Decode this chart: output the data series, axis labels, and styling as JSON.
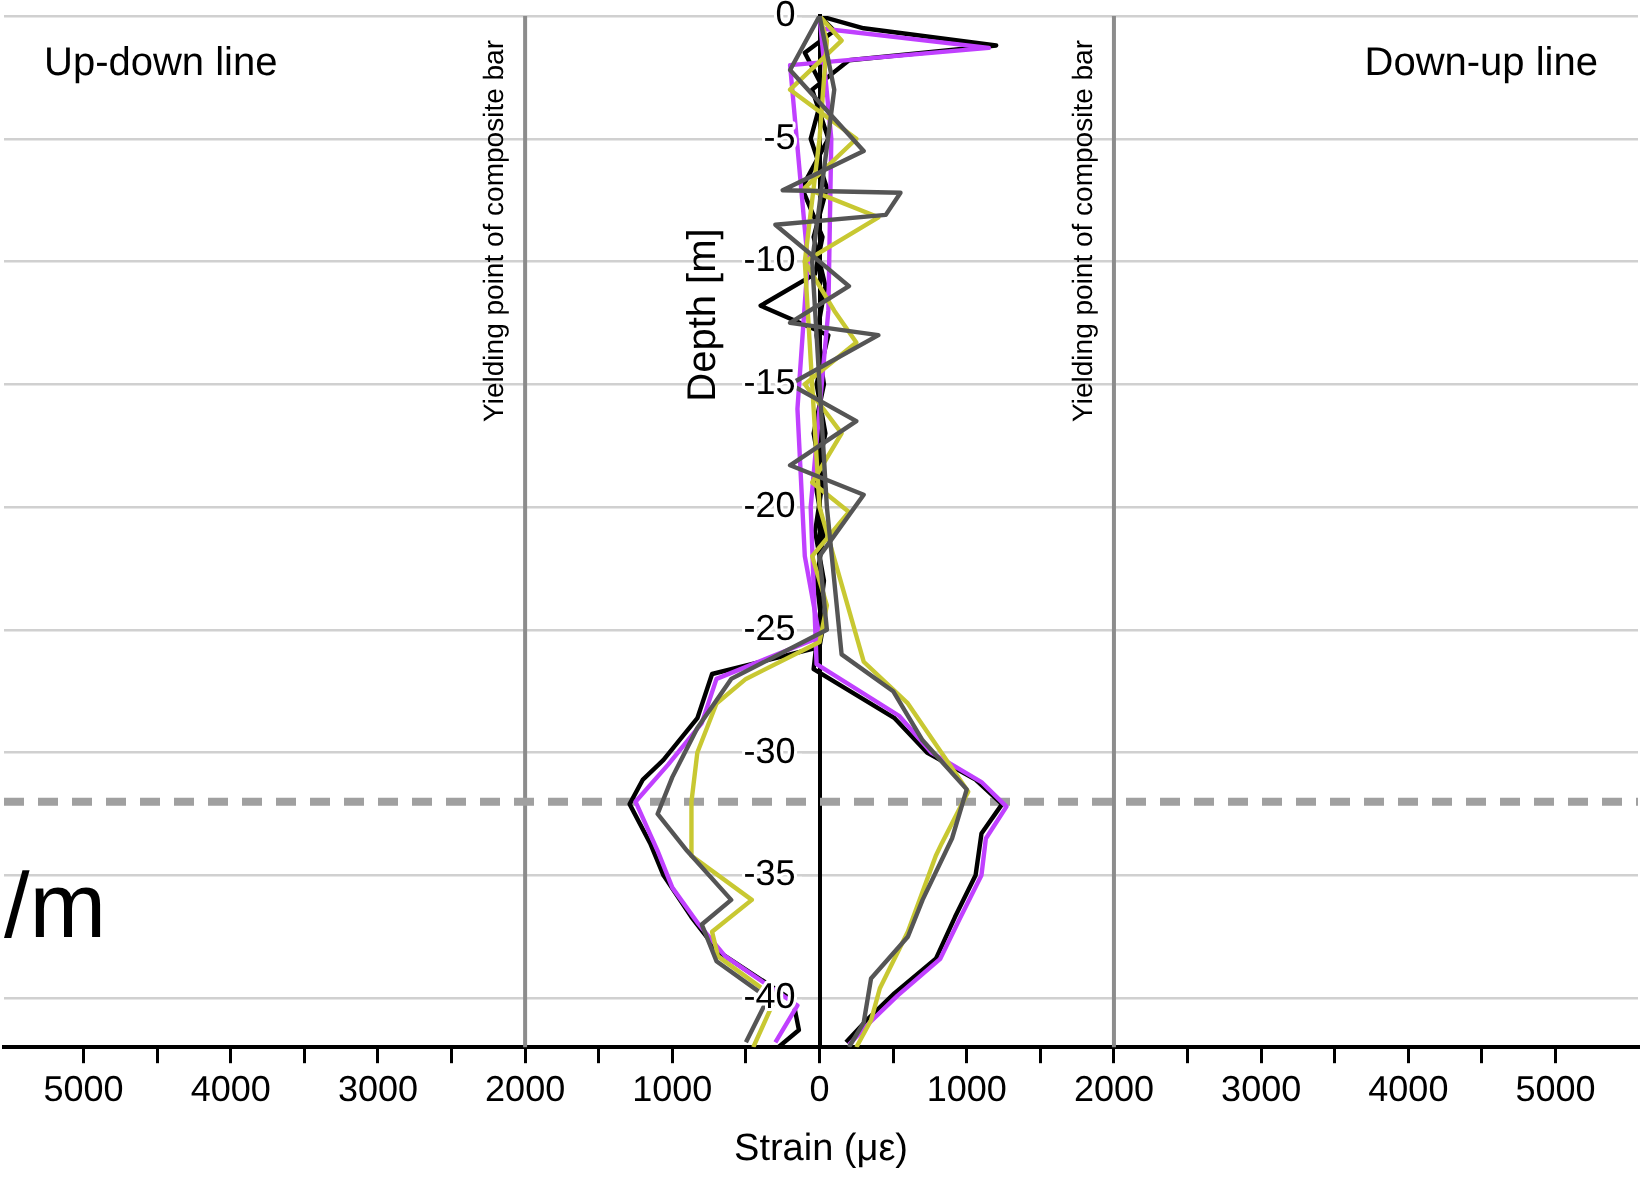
{
  "chart_data": {
    "type": "line",
    "xlabel": "Strain (με)",
    "ylabel": "Depth [m]",
    "xlim": [
      -5540,
      5560
    ],
    "ylim": [
      -42,
      0
    ],
    "xticks": [
      {
        "value": -5000,
        "label": "5000"
      },
      {
        "value": -4500,
        "label": null
      },
      {
        "value": -4000,
        "label": "4000"
      },
      {
        "value": -3500,
        "label": null
      },
      {
        "value": -3000,
        "label": "3000"
      },
      {
        "value": -2500,
        "label": null
      },
      {
        "value": -2000,
        "label": "2000"
      },
      {
        "value": -1500,
        "label": null
      },
      {
        "value": -1000,
        "label": "1000"
      },
      {
        "value": -500,
        "label": null
      },
      0,
      {
        "value": 500,
        "label": null
      },
      1000,
      {
        "value": 1500,
        "label": null
      },
      2000,
      {
        "value": 2500,
        "label": null
      },
      3000,
      {
        "value": 3500,
        "label": null
      },
      4000,
      {
        "value": 4500,
        "label": null
      },
      5000
    ],
    "yticks": [
      0,
      -5,
      -10,
      -15,
      -20,
      -25,
      -30,
      -35,
      -40
    ],
    "grid": "y",
    "legend": false,
    "marker": "none",
    "line_style": "solid",
    "ref_lines": [
      {
        "axis": "x",
        "value": -2000,
        "label": "Yielding point of composite bar",
        "color": "#8c8c8c",
        "line_style": "solid"
      },
      {
        "axis": "x",
        "value": 2000,
        "label": "Yielding point of composite bar",
        "color": "#8c8c8c",
        "line_style": "solid"
      },
      {
        "axis": "y",
        "value": -32,
        "label": null,
        "color": "#a0a0a0",
        "line_style": "dashed"
      }
    ],
    "annotations": [
      "Up-down line",
      "Down-up line",
      "/m"
    ],
    "series": [
      {
        "color": "#555555",
        "x": [
          0,
          -200,
          300,
          -250,
          550,
          450,
          -300,
          200,
          -200,
          400,
          -200,
          250,
          -200,
          300,
          0,
          50,
          -600,
          -830,
          -1000,
          -1100,
          -900,
          -600,
          -800,
          -700,
          -350,
          -500
        ],
        "values": [
          0,
          -2.2,
          -5.5,
          -7.1,
          -7.2,
          -8.1,
          -8.5,
          -11,
          -12.5,
          -13,
          -15,
          -16.5,
          -18.3,
          -19.5,
          -22,
          -25,
          -27,
          -29,
          -31,
          -32.5,
          -34,
          -36,
          -37,
          -38.5,
          -40,
          -41.8
        ]
      },
      {
        "color": "#555555",
        "x": [
          0,
          100,
          -50,
          50,
          150,
          500,
          700,
          1000,
          900,
          700,
          600,
          350,
          300,
          200
        ],
        "values": [
          0,
          -3,
          -10,
          -20,
          -26,
          -27.5,
          -29.5,
          -31.5,
          -33.5,
          -36,
          -37.5,
          -39.2,
          -41,
          -42
        ]
      },
      {
        "color": "#c8c832",
        "x": [
          0,
          150,
          -200,
          250,
          -100,
          400,
          -100,
          100,
          250,
          -100,
          150,
          -50,
          200,
          -50,
          50,
          0,
          -500,
          -700,
          -830,
          -870,
          -870,
          -460,
          -730,
          -690,
          -300,
          -450
        ],
        "values": [
          0,
          -1,
          -3,
          -5,
          -7,
          -8.2,
          -10,
          -12,
          -13.3,
          -15,
          -17,
          -19,
          -20.2,
          -22,
          -24,
          -25.5,
          -27,
          -28,
          -30,
          -32,
          -34.2,
          -36,
          -37.3,
          -38.3,
          -40,
          -42
        ]
      },
      {
        "color": "#c8c832",
        "x": [
          0,
          50,
          0,
          -100,
          0,
          300,
          600,
          1010,
          830,
          790,
          600,
          410,
          350,
          250
        ],
        "values": [
          0,
          -1,
          -5,
          -10,
          -20,
          -26.3,
          -28,
          -31.6,
          -33.7,
          -34.2,
          -37.3,
          -39.6,
          -40.9,
          -42
        ]
      },
      {
        "color": "#c040ff",
        "x": [
          0,
          1150,
          -200,
          -80,
          -150,
          -100,
          0,
          -700,
          -800,
          -1030,
          -1250,
          -1100,
          -1000,
          -820,
          -640,
          -150,
          -300
        ],
        "values": [
          -0.5,
          -1.3,
          -2,
          -10,
          -16,
          -22,
          -25.3,
          -27,
          -28.8,
          -30.5,
          -32,
          -34,
          -35.5,
          -37,
          -38.3,
          -40.3,
          -41.8
        ]
      },
      {
        "color": "#c040ff",
        "x": [
          0,
          80,
          60,
          -60,
          -20,
          540,
          760,
          1100,
          1270,
          1130,
          1100,
          950,
          820,
          530,
          340,
          200
        ],
        "values": [
          0,
          -5,
          -12,
          -20,
          -26.4,
          -28.5,
          -30,
          -31.2,
          -32.2,
          -33.5,
          -35,
          -36.8,
          -38.4,
          -39.9,
          -41,
          -41.9
        ]
      },
      {
        "color": "#000000",
        "x": [
          0,
          300,
          1200,
          200,
          -50,
          60,
          -120,
          20,
          -30,
          -400,
          60,
          -20,
          40,
          -30,
          30,
          -20,
          20,
          0,
          -730,
          -830,
          -1060,
          -1200,
          -1290,
          -1150,
          -1060,
          -870,
          -690,
          -460,
          -180,
          -140,
          -280
        ],
        "values": [
          0,
          -0.5,
          -1.2,
          -1.8,
          -3,
          -5,
          -7,
          -9,
          -10.5,
          -11.8,
          -13,
          -15,
          -17,
          -19,
          -21,
          -23,
          -25,
          -25.7,
          -26.8,
          -28.6,
          -30.3,
          -31.1,
          -32.1,
          -33.7,
          -35,
          -36.7,
          -38.1,
          -39,
          -40.1,
          -41.3,
          -42
        ]
      },
      {
        "color": "#000000",
        "x": [
          0,
          100,
          -100,
          30,
          -60,
          50,
          -40,
          40,
          -20,
          30,
          -40,
          20,
          -30,
          30,
          -10,
          -40,
          510,
          730,
          1060,
          1240,
          1100,
          1060,
          920,
          790,
          510,
          320,
          180
        ],
        "values": [
          0,
          -0.6,
          -1.5,
          -3,
          -5,
          -7,
          -9,
          -11,
          -13,
          -15,
          -17,
          -19,
          -21,
          -23,
          -25,
          -26.6,
          -28.6,
          -30,
          -31.1,
          -32.1,
          -33.3,
          -35,
          -36.7,
          -38.4,
          -39.8,
          -40.9,
          -41.8
        ]
      }
    ]
  }
}
